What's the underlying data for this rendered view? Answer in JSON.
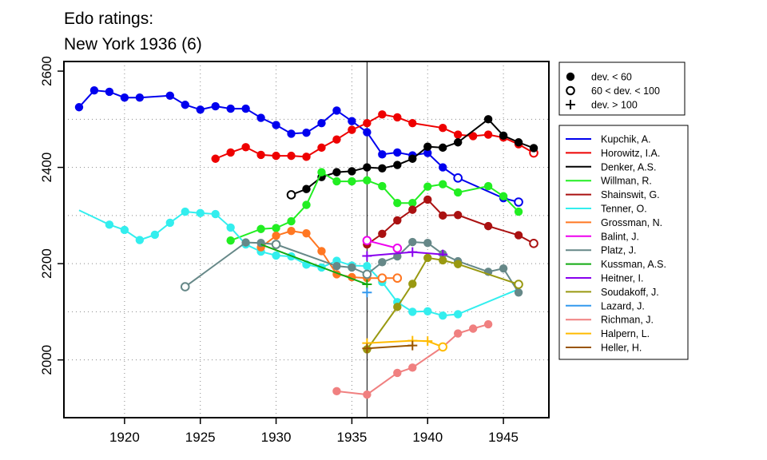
{
  "chart_data": {
    "type": "line",
    "title_lines": [
      "Edo ratings:",
      "New York 1936 (6)"
    ],
    "xlabel": "",
    "ylabel": "",
    "xlim": [
      1916,
      1948
    ],
    "ylim": [
      1880,
      2620
    ],
    "x_ticks": [
      1920,
      1925,
      1930,
      1935,
      1940,
      1945
    ],
    "y_ticks": [
      2000,
      2200,
      2400,
      2600
    ],
    "y_gridlines": [
      2000,
      2100,
      2200,
      2300,
      2400,
      2500
    ],
    "x_gridlines": [
      1920,
      1925,
      1930,
      1935,
      1940,
      1945
    ],
    "grid": "dotted",
    "marker_reference_year": 1936,
    "marker_legend": [
      {
        "marker": "filled",
        "label": "dev. < 60"
      },
      {
        "marker": "open",
        "label": "60 < dev. < 100"
      },
      {
        "marker": "plus",
        "label": "dev. > 100"
      }
    ],
    "series": [
      {
        "name": "Kupchik, A.",
        "color": "#0000ee",
        "points": [
          [
            1917,
            2525,
            "f"
          ],
          [
            1918,
            2560,
            "f"
          ],
          [
            1919,
            2557,
            "f"
          ],
          [
            1920,
            2545,
            "f"
          ],
          [
            1921,
            2545,
            "f"
          ],
          [
            1923,
            2549,
            "f"
          ],
          [
            1924,
            2530,
            "f"
          ],
          [
            1925,
            2520,
            "f"
          ],
          [
            1926,
            2527,
            "f"
          ],
          [
            1927,
            2522,
            "f"
          ],
          [
            1928,
            2522,
            "f"
          ],
          [
            1929,
            2503,
            "f"
          ],
          [
            1930,
            2488,
            "f"
          ],
          [
            1931,
            2470,
            "f"
          ],
          [
            1932,
            2472,
            "f"
          ],
          [
            1933,
            2492,
            "f"
          ],
          [
            1934,
            2518,
            "f"
          ],
          [
            1935,
            2496,
            "f"
          ],
          [
            1936,
            2473,
            "f"
          ],
          [
            1937,
            2427,
            "f"
          ],
          [
            1938,
            2431,
            "f"
          ],
          [
            1939,
            2425,
            "f"
          ],
          [
            1940,
            2430,
            "f"
          ],
          [
            1941,
            2400,
            "f"
          ],
          [
            1942,
            2378,
            "o"
          ],
          [
            1945,
            2336,
            "f"
          ],
          [
            1946,
            2328,
            "o"
          ]
        ]
      },
      {
        "name": "Horowitz, I.A.",
        "color": "#ee0000",
        "points": [
          [
            1926,
            2418,
            "f"
          ],
          [
            1927,
            2431,
            "f"
          ],
          [
            1928,
            2442,
            "f"
          ],
          [
            1929,
            2426,
            "f"
          ],
          [
            1930,
            2424,
            "f"
          ],
          [
            1931,
            2424,
            "f"
          ],
          [
            1932,
            2422,
            "f"
          ],
          [
            1933,
            2441,
            "f"
          ],
          [
            1934,
            2458,
            "f"
          ],
          [
            1935,
            2478,
            "f"
          ],
          [
            1936,
            2492,
            "f"
          ],
          [
            1937,
            2510,
            "f"
          ],
          [
            1938,
            2504,
            "f"
          ],
          [
            1939,
            2492,
            "f"
          ],
          [
            1941,
            2482,
            "f"
          ],
          [
            1942,
            2468,
            "f"
          ],
          [
            1943,
            2465,
            "f"
          ],
          [
            1944,
            2468,
            "f"
          ],
          [
            1945,
            2462,
            "f"
          ],
          [
            1946,
            2448,
            "f"
          ],
          [
            1947,
            2430,
            "o"
          ]
        ]
      },
      {
        "name": "Denker, A.S.",
        "color": "#000000",
        "points": [
          [
            1931,
            2343,
            "o"
          ],
          [
            1932,
            2355,
            "f"
          ],
          [
            1933,
            2380,
            "f"
          ],
          [
            1934,
            2390,
            "f"
          ],
          [
            1935,
            2392,
            "f"
          ],
          [
            1936,
            2400,
            "f"
          ],
          [
            1937,
            2398,
            "f"
          ],
          [
            1938,
            2405,
            "f"
          ],
          [
            1939,
            2418,
            "f"
          ],
          [
            1940,
            2443,
            "f"
          ],
          [
            1941,
            2441,
            "f"
          ],
          [
            1942,
            2452,
            "f"
          ],
          [
            1944,
            2500,
            "f"
          ],
          [
            1945,
            2466,
            "f"
          ],
          [
            1946,
            2452,
            "f"
          ],
          [
            1947,
            2440,
            "f"
          ]
        ]
      },
      {
        "name": "Willman, R.",
        "color": "#22ee22",
        "points": [
          [
            1927,
            2248,
            "f"
          ],
          [
            1929,
            2272,
            "f"
          ],
          [
            1930,
            2274,
            "f"
          ],
          [
            1931,
            2288,
            "f"
          ],
          [
            1932,
            2322,
            "f"
          ],
          [
            1933,
            2390,
            "f"
          ],
          [
            1934,
            2371,
            "f"
          ],
          [
            1935,
            2371,
            "f"
          ],
          [
            1936,
            2373,
            "f"
          ],
          [
            1937,
            2361,
            "f"
          ],
          [
            1938,
            2326,
            "f"
          ],
          [
            1939,
            2326,
            "f"
          ],
          [
            1940,
            2360,
            "f"
          ],
          [
            1941,
            2365,
            "f"
          ],
          [
            1942,
            2348,
            "f"
          ],
          [
            1944,
            2361,
            "f"
          ],
          [
            1945,
            2340,
            "f"
          ],
          [
            1946,
            2308,
            "f"
          ]
        ]
      },
      {
        "name": "Shainswit, G.",
        "color": "#aa1111",
        "points": [
          [
            1936,
            2240,
            "f"
          ],
          [
            1937,
            2262,
            "f"
          ],
          [
            1938,
            2290,
            "f"
          ],
          [
            1939,
            2312,
            "f"
          ],
          [
            1940,
            2333,
            "f"
          ],
          [
            1941,
            2300,
            "f"
          ],
          [
            1942,
            2301,
            "f"
          ],
          [
            1944,
            2278,
            "f"
          ],
          [
            1946,
            2259,
            "f"
          ],
          [
            1947,
            2242,
            "o"
          ]
        ]
      },
      {
        "name": "Tenner, O.",
        "color": "#33eeee",
        "points": [
          [
            1917,
            2311,
            "n"
          ],
          [
            1919,
            2281,
            "f"
          ],
          [
            1920,
            2270,
            "f"
          ],
          [
            1921,
            2249,
            "f"
          ],
          [
            1922,
            2260,
            "f"
          ],
          [
            1923,
            2285,
            "f"
          ],
          [
            1924,
            2308,
            "f"
          ],
          [
            1925,
            2305,
            "f"
          ],
          [
            1926,
            2303,
            "f"
          ],
          [
            1927,
            2275,
            "f"
          ],
          [
            1928,
            2240,
            "f"
          ],
          [
            1929,
            2225,
            "f"
          ],
          [
            1930,
            2217,
            "f"
          ],
          [
            1931,
            2215,
            "f"
          ],
          [
            1932,
            2198,
            "f"
          ],
          [
            1933,
            2192,
            "f"
          ],
          [
            1934,
            2206,
            "f"
          ],
          [
            1935,
            2196,
            "f"
          ],
          [
            1936,
            2195,
            "f"
          ],
          [
            1937,
            2162,
            "f"
          ],
          [
            1938,
            2120,
            "f"
          ],
          [
            1939,
            2100,
            "f"
          ],
          [
            1940,
            2101,
            "f"
          ],
          [
            1941,
            2092,
            "f"
          ],
          [
            1942,
            2095,
            "f"
          ],
          [
            1946,
            2147,
            "n"
          ]
        ]
      },
      {
        "name": "Grossman, N.",
        "color": "#ff7722",
        "points": [
          [
            1929,
            2234,
            "f"
          ],
          [
            1930,
            2258,
            "f"
          ],
          [
            1931,
            2268,
            "f"
          ],
          [
            1932,
            2263,
            "f"
          ],
          [
            1933,
            2226,
            "f"
          ],
          [
            1934,
            2178,
            "f"
          ],
          [
            1935,
            2172,
            "f"
          ],
          [
            1936,
            2170,
            "f"
          ],
          [
            1937,
            2170,
            "o"
          ],
          [
            1938,
            2170,
            "o"
          ]
        ]
      },
      {
        "name": "Balint, J.",
        "color": "#ee00ee",
        "points": [
          [
            1936,
            2248,
            "o"
          ],
          [
            1938,
            2232,
            "o"
          ]
        ]
      },
      {
        "name": "Platz, J.",
        "color": "#668888",
        "points": [
          [
            1924,
            2152,
            "o"
          ],
          [
            1928,
            2244,
            "f"
          ],
          [
            1929,
            2243,
            "f"
          ],
          [
            1930,
            2240,
            "o"
          ],
          [
            1934,
            2195,
            "f"
          ],
          [
            1935,
            2192,
            "f"
          ],
          [
            1936,
            2178,
            "o"
          ],
          [
            1937,
            2203,
            "f"
          ],
          [
            1938,
            2215,
            "f"
          ],
          [
            1939,
            2245,
            "f"
          ],
          [
            1940,
            2243,
            "f"
          ],
          [
            1941,
            2220,
            "f"
          ],
          [
            1942,
            2205,
            "f"
          ],
          [
            1944,
            2183,
            "f"
          ],
          [
            1945,
            2190,
            "f"
          ],
          [
            1946,
            2140,
            "f"
          ]
        ]
      },
      {
        "name": "Kussman, A.S.",
        "color": "#11aa11",
        "points": [
          [
            1929,
            2240,
            "n"
          ],
          [
            1936,
            2157,
            "p"
          ]
        ]
      },
      {
        "name": "Heitner, I.",
        "color": "#8800ee",
        "points": [
          [
            1936,
            2216,
            "p"
          ],
          [
            1939,
            2224,
            "p"
          ],
          [
            1941,
            2219,
            "p"
          ]
        ]
      },
      {
        "name": "Soudakoff, J.",
        "color": "#999911",
        "points": [
          [
            1936,
            2022,
            "f"
          ],
          [
            1938,
            2110,
            "f"
          ],
          [
            1939,
            2158,
            "f"
          ],
          [
            1940,
            2212,
            "f"
          ],
          [
            1941,
            2207,
            "f"
          ],
          [
            1942,
            2199,
            "f"
          ],
          [
            1946,
            2157,
            "o"
          ]
        ]
      },
      {
        "name": "Lazard, J.",
        "color": "#3399ee",
        "points": [
          [
            1936,
            2140,
            "p"
          ]
        ]
      },
      {
        "name": "Richman, J.",
        "color": "#f08080",
        "points": [
          [
            1934,
            1935,
            "f"
          ],
          [
            1936,
            1928,
            "f"
          ],
          [
            1938,
            1973,
            "f"
          ],
          [
            1939,
            1984,
            "f"
          ],
          [
            1941,
            2027,
            "f"
          ],
          [
            1942,
            2055,
            "f"
          ],
          [
            1943,
            2065,
            "f"
          ],
          [
            1944,
            2074,
            "f"
          ]
        ]
      },
      {
        "name": "Halpern, L.",
        "color": "#ffbb00",
        "points": [
          [
            1936,
            2035,
            "p"
          ],
          [
            1939,
            2040,
            "p"
          ],
          [
            1940,
            2039,
            "p"
          ],
          [
            1941,
            2027,
            "o"
          ]
        ]
      },
      {
        "name": "Heller, H.",
        "color": "#995500",
        "points": [
          [
            1936,
            2024,
            "p"
          ],
          [
            1939,
            2030,
            "p"
          ]
        ]
      }
    ]
  }
}
